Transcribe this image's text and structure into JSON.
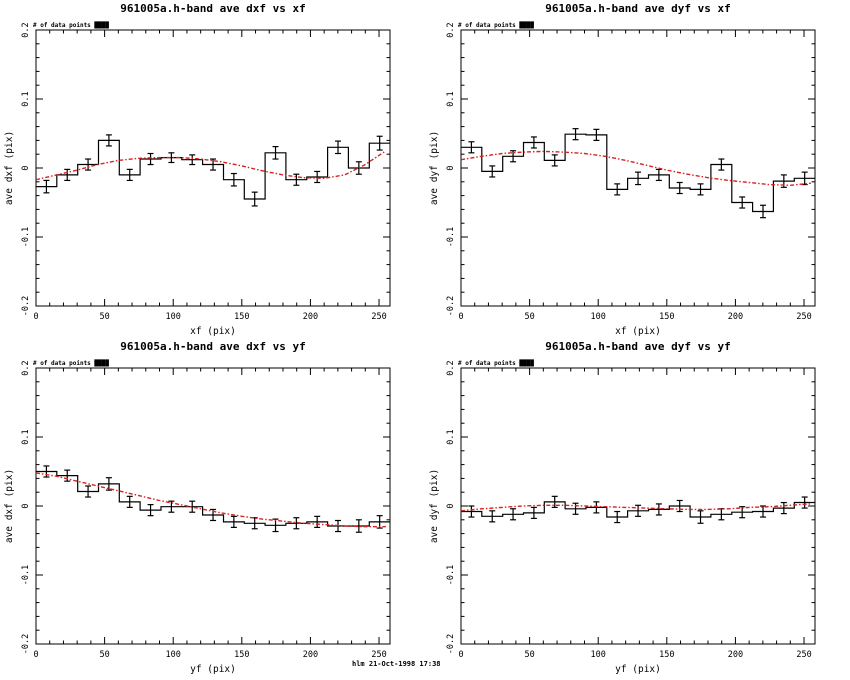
{
  "page": {
    "background": "#ffffff",
    "footer": "hlm 21-Oct-1998 17:38"
  },
  "colors": {
    "axis": "#000000",
    "data": "#000000",
    "fit": "#dd2020"
  },
  "annotation": {
    "label": "# of data points",
    "value": "████"
  },
  "chart_data": [
    {
      "type": "line",
      "style": "step-histogram-with-errorbars-and-dotted-fit",
      "title": "961005a.h-band ave dxf vs xf",
      "xlabel": "xf (pix)",
      "ylabel": "ave dxf (pix)",
      "xlim": [
        0,
        258
      ],
      "ylim": [
        -0.2,
        0.2
      ],
      "x_ticks": [
        0,
        50,
        100,
        150,
        200,
        250
      ],
      "x_tick_labels": [
        "0",
        "50",
        "100",
        "150",
        "200",
        "250"
      ],
      "y_ticks": [
        -0.2,
        -0.1,
        0,
        0.1,
        0.2
      ],
      "y_tick_labels": [
        "-0.2",
        "-0.1",
        "0",
        "0.1",
        "0.2"
      ],
      "x_minor_step": 10,
      "y_minor_step": 0.02,
      "bin_start": 0,
      "bin_width": 15.18,
      "values": [
        -0.027,
        -0.01,
        0.005,
        0.04,
        -0.01,
        0.013,
        0.015,
        0.012,
        0.005,
        -0.017,
        -0.045,
        0.022,
        -0.017,
        -0.013,
        0.03,
        0.0,
        0.036
      ],
      "errors": [
        0.009,
        0.008,
        0.008,
        0.008,
        0.008,
        0.008,
        0.007,
        0.007,
        0.008,
        0.009,
        0.01,
        0.009,
        0.008,
        0.008,
        0.009,
        0.009,
        0.01
      ],
      "fit": {
        "x": [
          0,
          15,
          30,
          45,
          60,
          75,
          90,
          105,
          120,
          135,
          150,
          165,
          180,
          195,
          210,
          225,
          240,
          255
        ],
        "y": [
          -0.017,
          -0.01,
          -0.003,
          0.005,
          0.011,
          0.014,
          0.015,
          0.015,
          0.013,
          0.009,
          0.003,
          -0.004,
          -0.01,
          -0.014,
          -0.015,
          -0.01,
          0.005,
          0.025
        ]
      }
    },
    {
      "type": "line",
      "style": "step-histogram-with-errorbars-and-dotted-fit",
      "title": "961005a.h-band ave dyf vs xf",
      "xlabel": "xf (pix)",
      "ylabel": "ave dyf (pix)",
      "xlim": [
        0,
        258
      ],
      "ylim": [
        -0.2,
        0.2
      ],
      "x_ticks": [
        0,
        50,
        100,
        150,
        200,
        250
      ],
      "x_tick_labels": [
        "0",
        "50",
        "100",
        "150",
        "200",
        "250"
      ],
      "y_ticks": [
        -0.2,
        -0.1,
        0,
        0.1,
        0.2
      ],
      "y_tick_labels": [
        "-0.2",
        "-0.1",
        "0",
        "0.1",
        "0.2"
      ],
      "x_minor_step": 10,
      "y_minor_step": 0.02,
      "bin_start": 0,
      "bin_width": 15.18,
      "values": [
        0.03,
        -0.005,
        0.017,
        0.037,
        0.011,
        0.049,
        0.048,
        -0.031,
        -0.015,
        -0.01,
        -0.029,
        -0.031,
        0.005,
        -0.05,
        -0.063,
        -0.019,
        -0.015
      ],
      "errors": [
        0.008,
        0.008,
        0.008,
        0.008,
        0.008,
        0.008,
        0.008,
        0.008,
        0.009,
        0.008,
        0.008,
        0.008,
        0.008,
        0.008,
        0.009,
        0.009,
        0.009
      ],
      "fit": {
        "x": [
          0,
          15,
          30,
          45,
          60,
          75,
          90,
          105,
          120,
          135,
          150,
          165,
          180,
          195,
          210,
          225,
          240,
          255
        ],
        "y": [
          0.012,
          0.017,
          0.021,
          0.023,
          0.024,
          0.023,
          0.021,
          0.017,
          0.011,
          0.004,
          -0.003,
          -0.009,
          -0.014,
          -0.018,
          -0.021,
          -0.024,
          -0.025,
          -0.022
        ]
      }
    },
    {
      "type": "line",
      "style": "step-histogram-with-errorbars-and-dotted-fit",
      "title": "961005a.h-band ave dxf vs yf",
      "xlabel": "yf (pix)",
      "ylabel": "ave dxf (pix)",
      "xlim": [
        0,
        258
      ],
      "ylim": [
        -0.2,
        0.2
      ],
      "x_ticks": [
        0,
        50,
        100,
        150,
        200,
        250
      ],
      "x_tick_labels": [
        "0",
        "50",
        "100",
        "150",
        "200",
        "250"
      ],
      "y_ticks": [
        -0.2,
        -0.1,
        0,
        0.1,
        0.2
      ],
      "y_tick_labels": [
        "-0.2",
        "-0.1",
        "0",
        "0.1",
        "0.2"
      ],
      "x_minor_step": 10,
      "y_minor_step": 0.02,
      "bin_start": 0,
      "bin_width": 15.18,
      "values": [
        0.05,
        0.044,
        0.021,
        0.032,
        0.006,
        -0.006,
        -0.001,
        -0.001,
        -0.013,
        -0.023,
        -0.025,
        -0.028,
        -0.025,
        -0.023,
        -0.029,
        -0.029,
        -0.023
      ],
      "errors": [
        0.008,
        0.008,
        0.008,
        0.009,
        0.008,
        0.008,
        0.008,
        0.008,
        0.008,
        0.008,
        0.008,
        0.009,
        0.008,
        0.008,
        0.008,
        0.009,
        0.009
      ],
      "fit": {
        "x": [
          0,
          15,
          30,
          45,
          60,
          75,
          90,
          105,
          120,
          135,
          150,
          165,
          180,
          195,
          210,
          225,
          240,
          255
        ],
        "y": [
          0.048,
          0.043,
          0.036,
          0.029,
          0.022,
          0.015,
          0.008,
          0.002,
          -0.004,
          -0.01,
          -0.015,
          -0.019,
          -0.022,
          -0.025,
          -0.027,
          -0.029,
          -0.03,
          -0.03
        ]
      }
    },
    {
      "type": "line",
      "style": "step-histogram-with-errorbars-and-dotted-fit",
      "title": "961005a.h-band ave dyf vs yf",
      "xlabel": "yf (pix)",
      "ylabel": "ave dyf (pix)",
      "xlim": [
        0,
        258
      ],
      "ylim": [
        -0.2,
        0.2
      ],
      "x_ticks": [
        0,
        50,
        100,
        150,
        200,
        250
      ],
      "x_tick_labels": [
        "0",
        "50",
        "100",
        "150",
        "200",
        "250"
      ],
      "y_ticks": [
        -0.2,
        -0.1,
        0,
        0.1,
        0.2
      ],
      "y_tick_labels": [
        "-0.2",
        "-0.1",
        "0",
        "0.1",
        "0.2"
      ],
      "x_minor_step": 10,
      "y_minor_step": 0.02,
      "bin_start": 0,
      "bin_width": 15.18,
      "values": [
        -0.008,
        -0.015,
        -0.012,
        -0.01,
        0.006,
        -0.004,
        -0.002,
        -0.016,
        -0.007,
        -0.005,
        0.0,
        -0.016,
        -0.012,
        -0.009,
        -0.008,
        -0.003,
        0.005
      ],
      "errors": [
        0.008,
        0.008,
        0.008,
        0.008,
        0.008,
        0.008,
        0.008,
        0.008,
        0.008,
        0.008,
        0.008,
        0.009,
        0.008,
        0.008,
        0.008,
        0.008,
        0.008
      ],
      "fit": {
        "x": [
          0,
          15,
          30,
          45,
          60,
          75,
          90,
          105,
          120,
          135,
          150,
          165,
          180,
          195,
          210,
          225,
          240,
          255
        ],
        "y": [
          -0.007,
          -0.004,
          -0.002,
          0.0,
          0.001,
          0.001,
          0.0,
          -0.001,
          -0.002,
          -0.003,
          -0.004,
          -0.005,
          -0.005,
          -0.004,
          -0.002,
          -0.001,
          0.001,
          0.003
        ]
      }
    }
  ]
}
